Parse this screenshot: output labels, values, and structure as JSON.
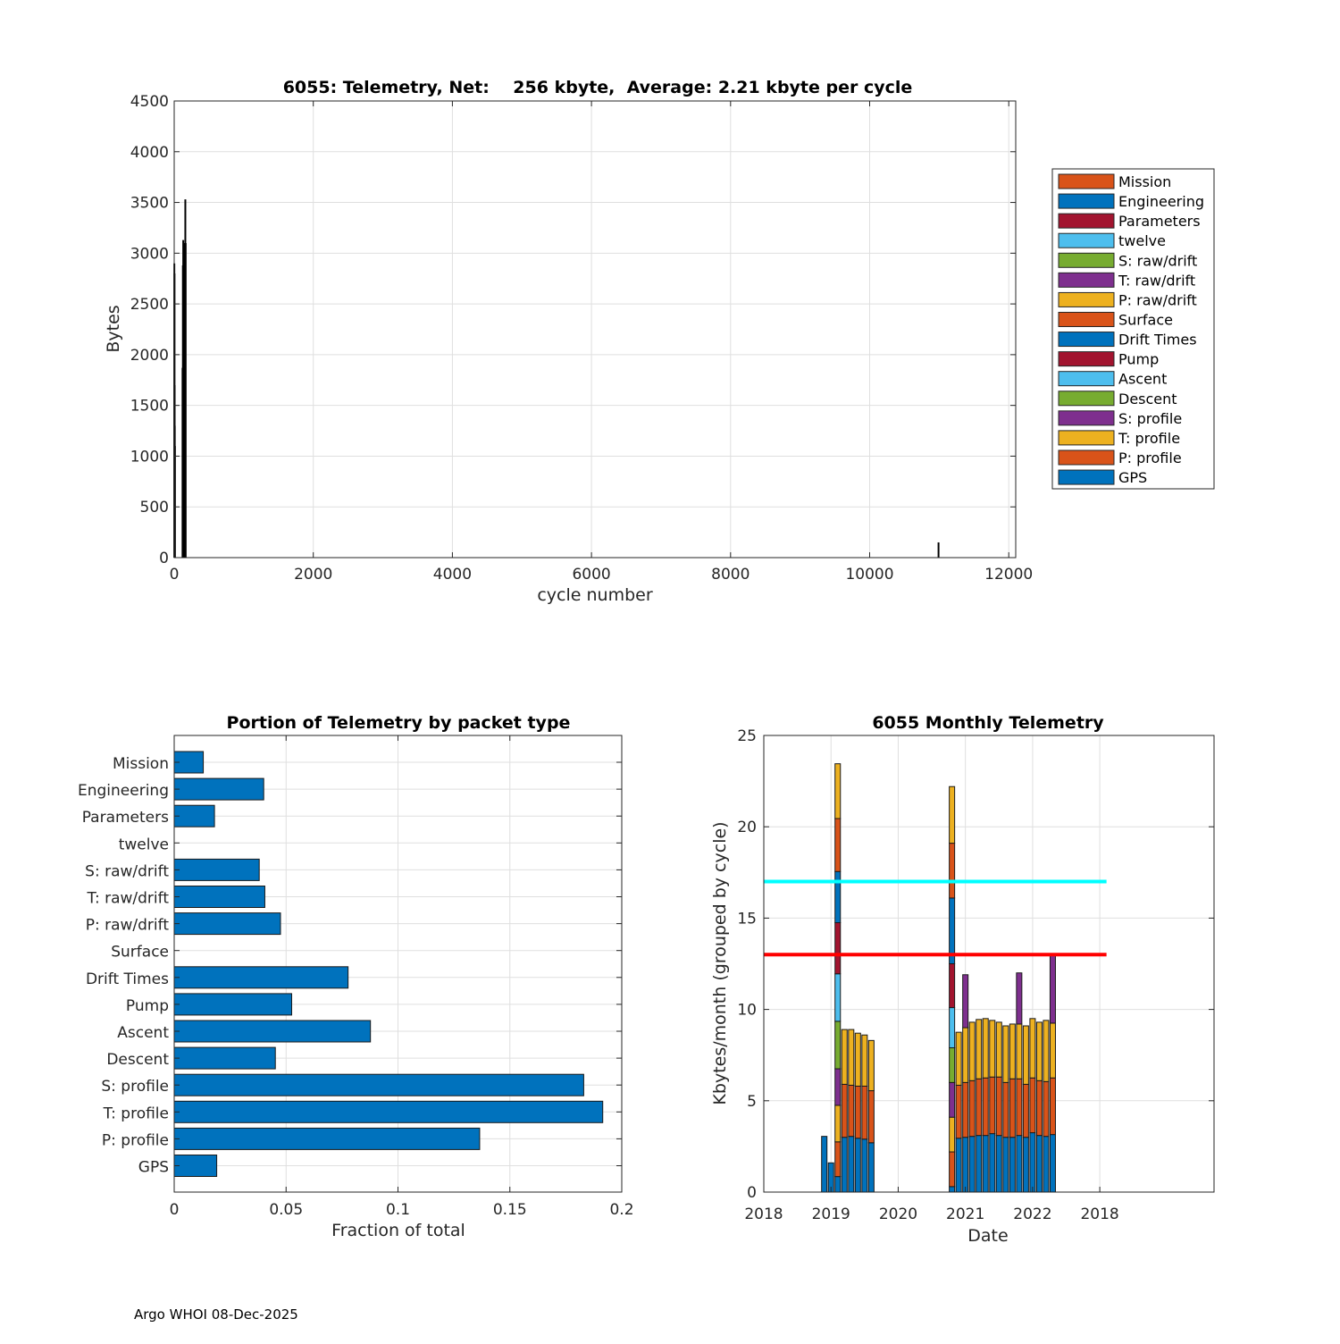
{
  "chart_data": [
    {
      "type": "bar",
      "title": "6055: Telemetry, Net:    256 kbyte,  Average: 2.21 kbyte per cycle",
      "xlabel": "cycle number",
      "ylabel": "Bytes",
      "xlim": [
        0,
        12100
      ],
      "ylim": [
        0,
        4500
      ],
      "xticks": [
        0,
        2000,
        4000,
        6000,
        8000,
        10000,
        12000
      ],
      "yticks": [
        0,
        500,
        1000,
        1500,
        2000,
        2500,
        3000,
        3500,
        4000,
        4500
      ],
      "grid": true,
      "legend_position": "outside-right",
      "legend": [
        {
          "name": "Mission",
          "color": "#D95319"
        },
        {
          "name": "Engineering",
          "color": "#0072BD"
        },
        {
          "name": "Parameters",
          "color": "#A2142F"
        },
        {
          "name": "twelve",
          "color": "#4DBEEE"
        },
        {
          "name": "S: raw/drift",
          "color": "#77AC30"
        },
        {
          "name": "T: raw/drift",
          "color": "#7E2F8E"
        },
        {
          "name": "P: raw/drift",
          "color": "#EDB120"
        },
        {
          "name": "Surface",
          "color": "#D95319"
        },
        {
          "name": "Drift Times",
          "color": "#0072BD"
        },
        {
          "name": "Pump",
          "color": "#A2142F"
        },
        {
          "name": "Ascent",
          "color": "#4DBEEE"
        },
        {
          "name": "Descent",
          "color": "#77AC30"
        },
        {
          "name": "S: profile",
          "color": "#7E2F8E"
        },
        {
          "name": "T: profile",
          "color": "#EDB120"
        },
        {
          "name": "P: profile",
          "color": "#D95319"
        },
        {
          "name": "GPS",
          "color": "#0072BD"
        }
      ],
      "points": [
        {
          "cycle": 2,
          "bytes": 2900
        },
        {
          "cycle": 4,
          "bytes": 2800
        },
        {
          "cycle": 6,
          "bytes": 1700
        },
        {
          "cycle": 8,
          "bytes": 1300
        },
        {
          "cycle": 10,
          "bytes": 1100
        },
        {
          "cycle": 120,
          "bytes": 1870
        },
        {
          "cycle": 125,
          "bytes": 2880
        },
        {
          "cycle": 130,
          "bytes": 3130
        },
        {
          "cycle": 135,
          "bytes": 3000
        },
        {
          "cycle": 140,
          "bytes": 3100
        },
        {
          "cycle": 145,
          "bytes": 3080
        },
        {
          "cycle": 150,
          "bytes": 3050
        },
        {
          "cycle": 155,
          "bytes": 3060
        },
        {
          "cycle": 160,
          "bytes": 3530
        },
        {
          "cycle": 165,
          "bytes": 3100
        },
        {
          "cycle": 10990,
          "bytes": 150
        }
      ]
    },
    {
      "type": "bar",
      "orientation": "horizontal",
      "title": "Portion of Telemetry by packet type",
      "xlabel": "Fraction of total",
      "ylabel": "",
      "xlim": [
        0,
        0.2
      ],
      "xticks": [
        0,
        0.05,
        0.1,
        0.15,
        0.2
      ],
      "xtick_labels": [
        "0",
        "0.05",
        "0.1",
        "0.15",
        "0.2"
      ],
      "grid": true,
      "bar_color": "#0072BD",
      "categories": [
        "Mission",
        "Engineering",
        "Parameters",
        "twelve",
        "S: raw/drift",
        "T: raw/drift",
        "P: raw/drift",
        "Surface",
        "Drift Times",
        "Pump",
        "Ascent",
        "Descent",
        "S: profile",
        "T: profile",
        "P: profile",
        "GPS"
      ],
      "values": [
        0.013,
        0.04,
        0.018,
        0,
        0.038,
        0.0405,
        0.0475,
        0,
        0.0777,
        0.0525,
        0.0877,
        0.0452,
        0.183,
        0.1915,
        0.1365,
        0.019
      ]
    },
    {
      "type": "bar",
      "stacked": true,
      "title": "6055 Monthly Telemetry",
      "xlabel": "Date",
      "ylabel": "Kbytes/month (grouped by cycle)",
      "ylim": [
        0,
        25
      ],
      "yticks": [
        0,
        5,
        10,
        15,
        20,
        25
      ],
      "xlim_months": [
        0,
        67
      ],
      "xticks_months": [
        0,
        10,
        20,
        30,
        40,
        50
      ],
      "xtick_labels": [
        "2018",
        "2019",
        "2020",
        "2021",
        "2022",
        "2018"
      ],
      "grid": true,
      "hlines": [
        {
          "value": 17,
          "color": "#00FFFF",
          "from_month": 0,
          "to_month": 51
        },
        {
          "value": 13,
          "color": "#FF0000",
          "from_month": 0,
          "to_month": 51
        }
      ],
      "series_colors": {
        "GPS": "#0072BD",
        "P: profile": "#D95319",
        "T: profile": "#EDB120",
        "S: profile": "#7E2F8E",
        "Descent": "#77AC30",
        "Ascent": "#4DBEEE",
        "Pump": "#A2142F",
        "Drift Times": "#0072BD",
        "Surface": "#D95319",
        "P: raw/drift": "#EDB120",
        "T: raw/drift": "#7E2F8E",
        "S: raw/drift": "#77AC30",
        "Parameters": "#A2142F",
        "Engineering": "#0072BD",
        "Mission": "#D95319"
      },
      "bars": [
        {
          "month": 9,
          "segments": [
            [
              "Engineering",
              3.05
            ]
          ]
        },
        {
          "month": 10,
          "segments": [
            [
              "Engineering",
              1.6
            ]
          ]
        },
        {
          "month": 11,
          "segments": [
            [
              "GPS",
              0.85
            ],
            [
              "P: profile",
              1.9
            ],
            [
              "T: profile",
              2.0
            ],
            [
              "S: profile",
              2.0
            ],
            [
              "Descent",
              2.6
            ],
            [
              "Ascent",
              2.6
            ],
            [
              "Pump",
              2.8
            ],
            [
              "Drift Times",
              2.8
            ],
            [
              "Surface",
              2.9
            ],
            [
              "P: raw/drift",
              3.0
            ]
          ]
        },
        {
          "month": 12,
          "segments": [
            [
              "GPS",
              3.0
            ],
            [
              "P: profile",
              2.9
            ],
            [
              "T: profile",
              3.0
            ]
          ]
        },
        {
          "month": 13,
          "segments": [
            [
              "GPS",
              3.05
            ],
            [
              "P: profile",
              2.8
            ],
            [
              "T: profile",
              3.05
            ]
          ]
        },
        {
          "month": 14,
          "segments": [
            [
              "GPS",
              2.95
            ],
            [
              "P: profile",
              2.85
            ],
            [
              "T: profile",
              2.9
            ]
          ]
        },
        {
          "month": 15,
          "segments": [
            [
              "GPS",
              2.9
            ],
            [
              "P: profile",
              2.9
            ],
            [
              "T: profile",
              2.8
            ]
          ]
        },
        {
          "month": 16,
          "segments": [
            [
              "GPS",
              2.7
            ],
            [
              "P: profile",
              2.85
            ],
            [
              "T: profile",
              2.75
            ]
          ]
        },
        {
          "month": 28,
          "segments": [
            [
              "GPS",
              0.3
            ],
            [
              "P: profile",
              1.9
            ],
            [
              "T: profile",
              1.9
            ],
            [
              "S: profile",
              1.9
            ],
            [
              "Descent",
              1.9
            ],
            [
              "Ascent",
              2.2
            ],
            [
              "Pump",
              2.4
            ],
            [
              "Drift Times",
              3.6
            ],
            [
              "Surface",
              3.0
            ],
            [
              "P: raw/drift",
              3.1
            ]
          ]
        },
        {
          "month": 29,
          "segments": [
            [
              "GPS",
              2.95
            ],
            [
              "P: profile",
              2.9
            ],
            [
              "T: profile",
              2.9
            ]
          ]
        },
        {
          "month": 30,
          "segments": [
            [
              "GPS",
              3.0
            ],
            [
              "P: profile",
              3.0
            ],
            [
              "T: profile",
              3.0
            ],
            [
              "S: profile",
              2.9
            ]
          ]
        },
        {
          "month": 31,
          "segments": [
            [
              "GPS",
              3.05
            ],
            [
              "P: profile",
              3.05
            ],
            [
              "T: profile",
              3.2
            ]
          ]
        },
        {
          "month": 32,
          "segments": [
            [
              "GPS",
              3.1
            ],
            [
              "P: profile",
              3.1
            ],
            [
              "T: profile",
              3.25
            ]
          ]
        },
        {
          "month": 33,
          "segments": [
            [
              "GPS",
              3.1
            ],
            [
              "P: profile",
              3.15
            ],
            [
              "T: profile",
              3.25
            ]
          ]
        },
        {
          "month": 34,
          "segments": [
            [
              "GPS",
              3.2
            ],
            [
              "P: profile",
              3.1
            ],
            [
              "T: profile",
              3.1
            ]
          ]
        },
        {
          "month": 35,
          "segments": [
            [
              "GPS",
              3.1
            ],
            [
              "P: profile",
              3.2
            ],
            [
              "T: profile",
              3.0
            ]
          ]
        },
        {
          "month": 36,
          "segments": [
            [
              "GPS",
              3.0
            ],
            [
              "P: profile",
              3.0
            ],
            [
              "T: profile",
              3.1
            ]
          ]
        },
        {
          "month": 37,
          "segments": [
            [
              "GPS",
              3.0
            ],
            [
              "P: profile",
              3.2
            ],
            [
              "T: profile",
              3.0
            ]
          ]
        },
        {
          "month": 38,
          "segments": [
            [
              "GPS",
              3.1
            ],
            [
              "P: profile",
              3.1
            ],
            [
              "T: profile",
              3.0
            ],
            [
              "S: profile",
              2.8
            ]
          ]
        },
        {
          "month": 39,
          "segments": [
            [
              "GPS",
              3.0
            ],
            [
              "P: profile",
              2.9
            ],
            [
              "T: profile",
              3.2
            ]
          ]
        },
        {
          "month": 40,
          "segments": [
            [
              "GPS",
              3.25
            ],
            [
              "P: profile",
              3.0
            ],
            [
              "T: profile",
              3.25
            ]
          ]
        },
        {
          "month": 41,
          "segments": [
            [
              "GPS",
              3.1
            ],
            [
              "P: profile",
              3.0
            ],
            [
              "T: profile",
              3.2
            ]
          ]
        },
        {
          "month": 42,
          "segments": [
            [
              "GPS",
              3.05
            ],
            [
              "P: profile",
              3.0
            ],
            [
              "T: profile",
              3.35
            ]
          ]
        },
        {
          "month": 43,
          "segments": [
            [
              "GPS",
              3.15
            ],
            [
              "P: profile",
              3.1
            ],
            [
              "T: profile",
              3.0
            ],
            [
              "S: profile",
              3.7
            ]
          ]
        }
      ]
    }
  ],
  "footer": "Argo WHOI 08-Dec-2025"
}
